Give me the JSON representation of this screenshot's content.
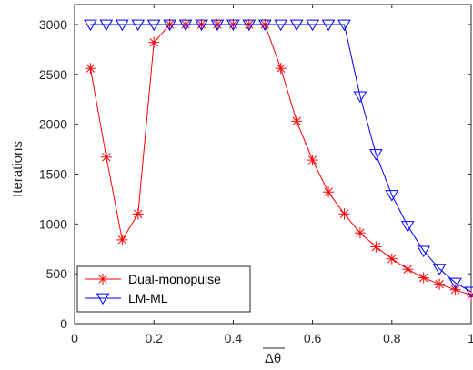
{
  "chart_data": {
    "type": "line",
    "title": "",
    "xlabel": "Δθ",
    "ylabel": "Iterations",
    "xlim": [
      0,
      1
    ],
    "ylim": [
      0,
      3200
    ],
    "x_ticks": [
      0,
      0.2,
      0.4,
      0.6,
      0.8,
      1
    ],
    "x_tick_labels": [
      "0",
      "0.2",
      "0.4",
      "0.6",
      "0.8",
      "1"
    ],
    "y_ticks": [
      0,
      500,
      1000,
      1500,
      2000,
      2500,
      3000
    ],
    "y_tick_labels": [
      "0",
      "500",
      "1000",
      "1500",
      "2000",
      "2500",
      "3000"
    ],
    "grid": false,
    "legend_position": "bottom-left",
    "x": [
      0.04,
      0.08,
      0.12,
      0.16,
      0.2,
      0.24,
      0.28,
      0.32,
      0.36,
      0.4,
      0.44,
      0.48,
      0.52,
      0.56,
      0.6,
      0.64,
      0.68,
      0.72,
      0.76,
      0.8,
      0.84,
      0.88,
      0.92,
      0.96,
      1.0
    ],
    "series": [
      {
        "name": "Dual-monopulse",
        "color": "#ff0000",
        "marker": "asterisk",
        "values": [
          2560,
          1670,
          840,
          1100,
          2820,
          3000,
          3000,
          3000,
          3000,
          3000,
          3000,
          3000,
          2560,
          2030,
          1640,
          1320,
          1100,
          910,
          770,
          650,
          545,
          460,
          395,
          340,
          285
        ]
      },
      {
        "name": "LM-ML",
        "color": "#0000ff",
        "marker": "triangle-down",
        "values": [
          3000,
          3000,
          3000,
          3000,
          3000,
          3000,
          3000,
          3000,
          3000,
          3000,
          3000,
          3000,
          3000,
          3000,
          3000,
          3000,
          3000,
          2280,
          1700,
          1290,
          980,
          730,
          550,
          410,
          320
        ]
      }
    ]
  }
}
